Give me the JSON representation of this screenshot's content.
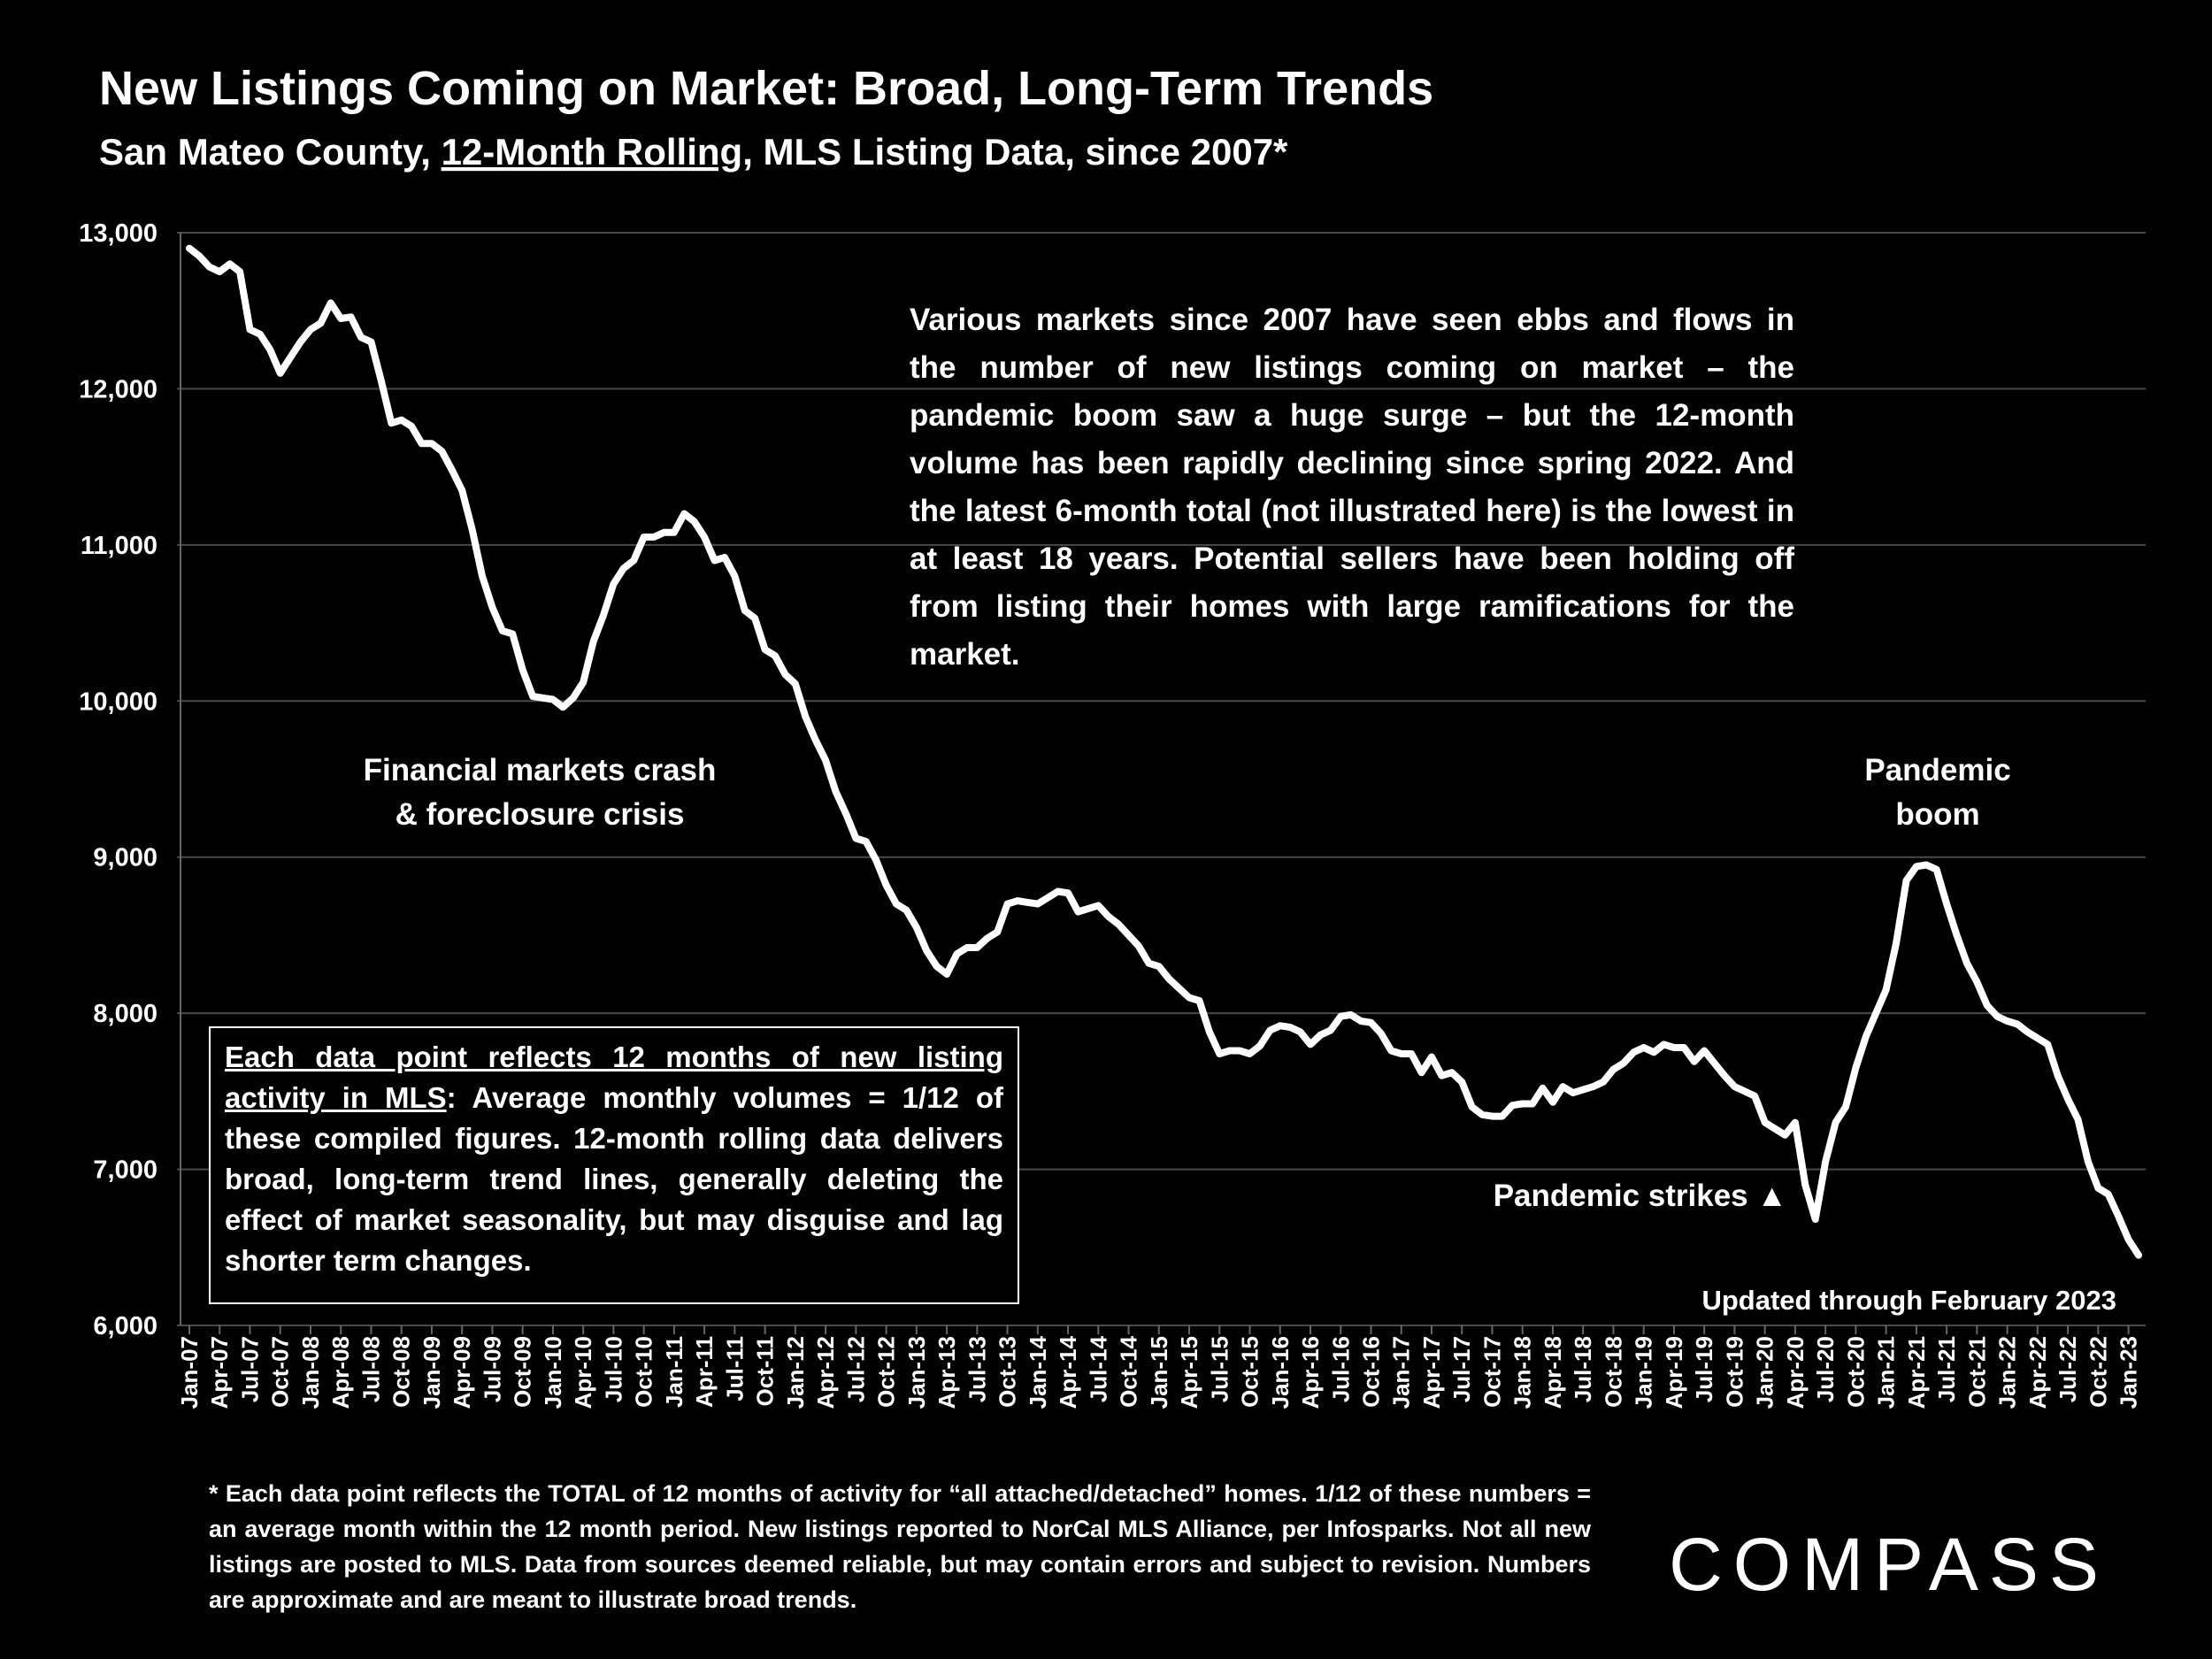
{
  "chart_data": {
    "type": "line",
    "title": "New Listings Coming on Market: Broad, Long-Term Trends",
    "subtitle": [
      "San Mateo County, ",
      "12-Month Rolling",
      ", MLS Listing Data, since 2007*"
    ],
    "categories": [
      "Jan-07",
      null,
      null,
      "Apr-07",
      null,
      null,
      "Jul-07",
      null,
      null,
      "Oct-07",
      null,
      null,
      "Jan-08",
      null,
      null,
      "Apr-08",
      null,
      null,
      "Jul-08",
      null,
      null,
      "Oct-08",
      null,
      null,
      "Jan-09",
      null,
      null,
      "Apr-09",
      null,
      null,
      "Jul-09",
      null,
      null,
      "Oct-09",
      null,
      null,
      "Jan-10",
      null,
      null,
      "Apr-10",
      null,
      null,
      "Jul-10",
      null,
      null,
      "Oct-10",
      null,
      null,
      "Jan-11",
      null,
      null,
      "Apr-11",
      null,
      null,
      "Jul-11",
      null,
      null,
      "Oct-11",
      null,
      null,
      "Jan-12",
      null,
      null,
      "Apr-12",
      null,
      null,
      "Jul-12",
      null,
      null,
      "Oct-12",
      null,
      null,
      "Jan-13",
      null,
      null,
      "Apr-13",
      null,
      null,
      "Jul-13",
      null,
      null,
      "Oct-13",
      null,
      null,
      "Jan-14",
      null,
      null,
      "Apr-14",
      null,
      null,
      "Jul-14",
      null,
      null,
      "Oct-14",
      null,
      null,
      "Jan-15",
      null,
      null,
      "Apr-15",
      null,
      null,
      "Jul-15",
      null,
      null,
      "Oct-15",
      null,
      null,
      "Jan-16",
      null,
      null,
      "Apr-16",
      null,
      null,
      "Jul-16",
      null,
      null,
      "Oct-16",
      null,
      null,
      "Jan-17",
      null,
      null,
      "Apr-17",
      null,
      null,
      "Jul-17",
      null,
      null,
      "Oct-17",
      null,
      null,
      "Jan-18",
      null,
      null,
      "Apr-18",
      null,
      null,
      "Jul-18",
      null,
      null,
      "Oct-18",
      null,
      null,
      "Jan-19",
      null,
      null,
      "Apr-19",
      null,
      null,
      "Jul-19",
      null,
      null,
      "Oct-19",
      null,
      null,
      "Jan-20",
      null,
      null,
      "Apr-20",
      null,
      null,
      "Jul-20",
      null,
      null,
      "Oct-20",
      null,
      null,
      "Jan-21",
      null,
      null,
      "Apr-21",
      null,
      null,
      "Jul-21",
      null,
      null,
      "Oct-21",
      null,
      null,
      "Jan-22",
      null,
      null,
      "Apr-22",
      null,
      null,
      "Jul-22",
      null,
      null,
      "Oct-22",
      null,
      null,
      "Jan-23",
      null
    ],
    "values": [
      12900,
      12850,
      12780,
      12750,
      12800,
      12750,
      12380,
      12350,
      12250,
      12100,
      12200,
      12300,
      12380,
      12420,
      12550,
      12450,
      12460,
      12330,
      12300,
      12050,
      11780,
      11800,
      11760,
      11650,
      11650,
      11600,
      11480,
      11350,
      11100,
      10800,
      10600,
      10450,
      10430,
      10200,
      10030,
      10020,
      10010,
      9960,
      10020,
      10120,
      10380,
      10550,
      10750,
      10850,
      10900,
      11050,
      11050,
      11080,
      11080,
      11200,
      11150,
      11050,
      10900,
      10920,
      10800,
      10580,
      10530,
      10330,
      10290,
      10170,
      10110,
      9900,
      9750,
      9620,
      9420,
      9280,
      9120,
      9100,
      8980,
      8820,
      8700,
      8660,
      8550,
      8400,
      8300,
      8250,
      8380,
      8420,
      8420,
      8480,
      8520,
      8700,
      8720,
      8710,
      8700,
      8740,
      8780,
      8770,
      8650,
      8670,
      8690,
      8620,
      8570,
      8500,
      8430,
      8320,
      8300,
      8220,
      8160,
      8100,
      8080,
      7880,
      7740,
      7760,
      7760,
      7740,
      7790,
      7890,
      7920,
      7910,
      7880,
      7800,
      7860,
      7890,
      7980,
      7990,
      7950,
      7940,
      7870,
      7760,
      7740,
      7740,
      7620,
      7720,
      7600,
      7620,
      7560,
      7400,
      7350,
      7340,
      7340,
      7410,
      7420,
      7420,
      7520,
      7430,
      7530,
      7490,
      7510,
      7530,
      7560,
      7640,
      7680,
      7750,
      7780,
      7750,
      7800,
      7780,
      7780,
      7690,
      7760,
      7680,
      7600,
      7530,
      7500,
      7470,
      7300,
      7260,
      7220,
      7300,
      6900,
      6680,
      7050,
      7300,
      7400,
      7650,
      7850,
      8000,
      8150,
      8450,
      8850,
      8940,
      8950,
      8920,
      8700,
      8500,
      8320,
      8200,
      8050,
      7980,
      7950,
      7930,
      7880,
      7840,
      7800,
      7600,
      7450,
      7320,
      7050,
      6880,
      6840,
      6700,
      6550,
      6450
    ],
    "color": "#ffffff",
    "ylim": [
      6000,
      13000
    ],
    "yticks": [
      {
        "value": 6000,
        "label": "6,000"
      },
      {
        "value": 7000,
        "label": "7,000"
      },
      {
        "value": 8000,
        "label": "8,000"
      },
      {
        "value": 9000,
        "label": "9,000"
      },
      {
        "value": 10000,
        "label": "10,000"
      },
      {
        "value": 11000,
        "label": "11,000"
      },
      {
        "value": 12000,
        "label": "12,000"
      },
      {
        "value": 13000,
        "label": "13,000"
      }
    ],
    "grid": true,
    "annotations": {
      "summary": "Various markets since 2007 have seen ebbs and flows in the number of new listings coming on market – the pandemic boom saw a huge surge – but the 12-month volume has been rapidly declining since spring 2022. And the latest 6-month total (not illustrated here) is the lowest in at least 18 years. Potential sellers have been holding off from listing their homes with large ramifications for the market.",
      "crash": "Financial markets crash\n& foreclosure crisis",
      "boom": "Pandemic\nboom",
      "strikes": "Pandemic strikes ▲",
      "updated": "Updated through February 2023",
      "note_underlined": "Each data point reflects 12 months of new listing activity in MLS",
      "note_rest": ":  Average monthly volumes = 1/12 of these compiled figures. 12-month rolling data delivers broad, long-term trend lines, generally deleting the effect of market seasonality, but may disguise and lag shorter term changes."
    },
    "footnote": "* Each data point reflects the TOTAL of 12 months of activity for “all attached/detached” homes. 1/12 of these numbers = an average month within the 12 month period. New listings reported to NorCal MLS Alliance, per Infosparks. Not all new listings are posted to MLS. Data from sources deemed reliable, but may contain errors and subject to revision. Numbers are approximate and are meant to illustrate broad trends.",
    "logo": "COMPASS"
  }
}
